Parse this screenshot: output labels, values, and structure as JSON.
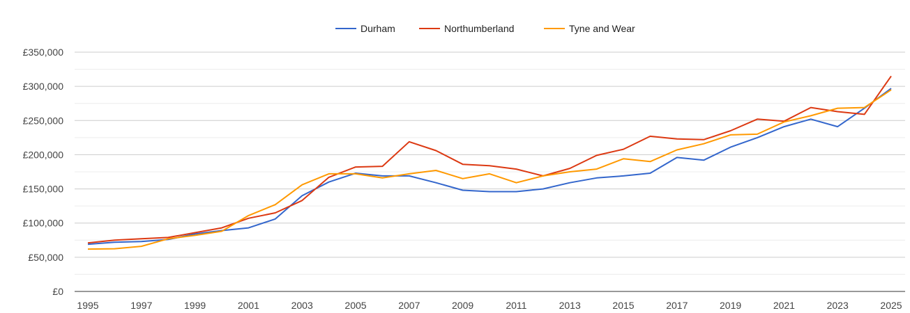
{
  "chart_data": {
    "type": "line",
    "title": "",
    "xlabel": "",
    "ylabel": "",
    "x": [
      1995,
      1996,
      1997,
      1998,
      1999,
      2000,
      2001,
      2002,
      2003,
      2004,
      2005,
      2006,
      2007,
      2008,
      2009,
      2010,
      2011,
      2012,
      2013,
      2014,
      2015,
      2016,
      2017,
      2018,
      2019,
      2020,
      2021,
      2022,
      2023,
      2024,
      2025
    ],
    "x_tick_labels": [
      "1995",
      "1997",
      "1999",
      "2001",
      "2003",
      "2005",
      "2007",
      "2009",
      "2011",
      "2013",
      "2015",
      "2017",
      "2019",
      "2021",
      "2023",
      "2025"
    ],
    "x_ticks": [
      1995,
      1997,
      1999,
      2001,
      2003,
      2005,
      2007,
      2009,
      2011,
      2013,
      2015,
      2017,
      2019,
      2021,
      2023,
      2025
    ],
    "ylim": [
      0,
      350000
    ],
    "y_ticks": [
      0,
      50000,
      100000,
      150000,
      200000,
      250000,
      300000,
      350000
    ],
    "y_tick_labels": [
      "£0",
      "£50,000",
      "£100,000",
      "£150,000",
      "£200,000",
      "£250,000",
      "£300,000",
      "£350,000"
    ],
    "grid": true,
    "legend_position": "top",
    "series": [
      {
        "name": "Durham",
        "color": "#3366cc",
        "values": [
          69000,
          72000,
          73000,
          76000,
          84000,
          89000,
          93000,
          106000,
          140000,
          160000,
          173000,
          169000,
          169000,
          159000,
          148000,
          146000,
          146000,
          150000,
          159000,
          166000,
          169000,
          173000,
          196000,
          192000,
          211000,
          225000,
          241000,
          252000,
          241000,
          268000,
          297000
        ]
      },
      {
        "name": "Northumberland",
        "color": "#dc3912",
        "values": [
          71000,
          75000,
          77000,
          79000,
          86000,
          93000,
          107000,
          115000,
          133000,
          167000,
          182000,
          183000,
          219000,
          206000,
          186000,
          184000,
          179000,
          169000,
          180000,
          199000,
          208000,
          227000,
          223000,
          222000,
          235000,
          252000,
          249000,
          269000,
          263000,
          259000,
          315000
        ]
      },
      {
        "name": "Tyne and Wear",
        "color": "#ff9900",
        "values": [
          62000,
          62500,
          66000,
          77000,
          82000,
          88000,
          111000,
          127000,
          156000,
          172000,
          172000,
          166000,
          172000,
          177000,
          165000,
          172000,
          159000,
          169000,
          175000,
          179000,
          194000,
          190000,
          207000,
          216000,
          229000,
          230000,
          248000,
          257000,
          268000,
          269000,
          295000
        ]
      }
    ]
  }
}
